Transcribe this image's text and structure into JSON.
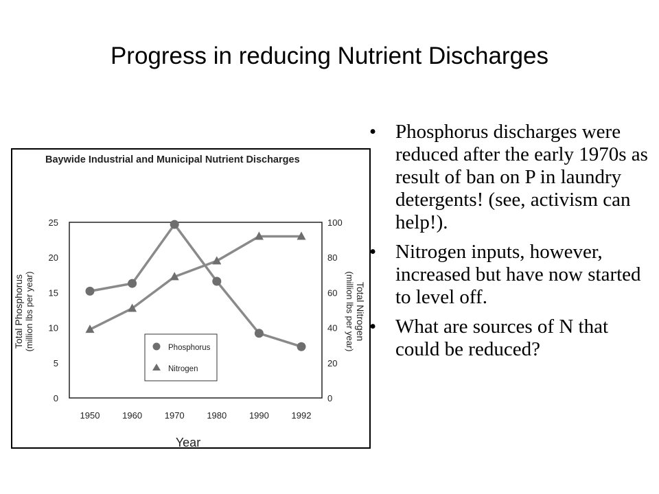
{
  "slide": {
    "title": "Progress in reducing Nutrient Discharges"
  },
  "bullets": [
    {
      "text": "Phosphorus discharges were reduced after the early 1970s as result of ban on P in laundry detergents! (see, activism can help!)."
    },
    {
      "text": "Nitrogen inputs, however, increased but have now started to level off."
    },
    {
      "text": "What are sources of N that could be reduced?"
    }
  ],
  "bullet_glyph": "•",
  "chart_data": {
    "type": "line",
    "title": "Baywide Industrial and Municipal Nutrient Discharges",
    "xlabel": "Year",
    "ylabel_left_1": "Total Phosphorus",
    "ylabel_left_2": "(million lbs per year)",
    "ylabel_right_1": "Total Nitrogen",
    "ylabel_right_2": "(million lbs per year)",
    "categories": [
      "1950",
      "1960",
      "1970",
      "1980",
      "1990",
      "1992"
    ],
    "y_left_ticks": [
      "0",
      "5",
      "10",
      "15",
      "20",
      "25"
    ],
    "y_right_ticks": [
      "0",
      "20",
      "40",
      "60",
      "80",
      "100"
    ],
    "ylim_left": [
      0,
      25
    ],
    "ylim_right": [
      0,
      100
    ],
    "legend_position": "bottom-center",
    "grid": false,
    "series": [
      {
        "name": "Phosphorus",
        "axis": "left",
        "marker": "circle",
        "values": [
          15.2,
          16.3,
          24.7,
          16.6,
          9.2,
          7.3
        ]
      },
      {
        "name": "Nitrogen",
        "axis": "right",
        "marker": "triangle",
        "values": [
          39,
          51,
          69,
          78,
          92,
          92
        ]
      }
    ],
    "colors": {
      "line": "#8a8a8a",
      "marker": "#6e6e6e",
      "frame": "#000000"
    }
  }
}
